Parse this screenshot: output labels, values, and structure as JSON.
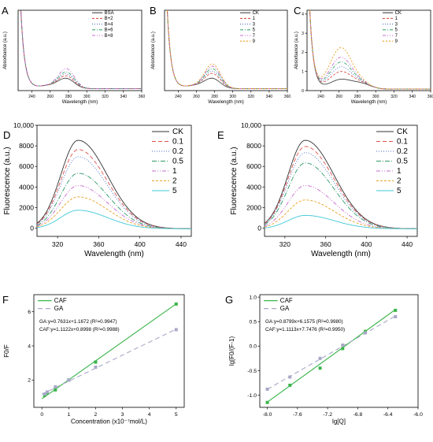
{
  "chart_data": [
    {
      "panel": "A",
      "type": "line",
      "xlabel": "Wavelength (nm)",
      "ylabel": "Absorbance (a.u.)",
      "xlim": [
        225,
        360
      ],
      "ylim": [
        0,
        4.2
      ],
      "xticks": [
        240,
        260,
        280,
        300,
        320,
        340,
        360
      ],
      "yticks": [],
      "legend": "top-right",
      "grid": false,
      "series": [
        {
          "name": "BSA",
          "color": "#444444",
          "dash": "",
          "peak": 0.45
        },
        {
          "name": "B+2",
          "color": "#e0504a",
          "dash": "3,2",
          "peak": 0.58
        },
        {
          "name": "B+4",
          "color": "#4a72c4",
          "dash": "1,2",
          "peak": 0.68
        },
        {
          "name": "B+6",
          "color": "#3aa870",
          "dash": "4,2,1,2",
          "peak": 0.78
        },
        {
          "name": "B+8",
          "color": "#c86ad0",
          "dash": "4,2,1,2,1,2",
          "peak": 0.95
        }
      ]
    },
    {
      "panel": "B",
      "type": "line",
      "xlabel": "Wavelength (nm)",
      "ylabel": "Absorbance (a.u.)",
      "xlim": [
        225,
        360
      ],
      "ylim": [
        0,
        4.2
      ],
      "xticks": [
        240,
        260,
        280,
        300,
        320,
        340,
        360
      ],
      "yticks": [],
      "legend": "top-right",
      "grid": false,
      "series": [
        {
          "name": "CK",
          "color": "#444444",
          "dash": "",
          "peak": 0.45
        },
        {
          "name": "1",
          "color": "#e0504a",
          "dash": "3,2",
          "peak": 0.7
        },
        {
          "name": "3",
          "color": "#4a72c4",
          "dash": "1,2",
          "peak": 0.82
        },
        {
          "name": "5",
          "color": "#3aa870",
          "dash": "4,2,1,2",
          "peak": 0.95
        },
        {
          "name": "7",
          "color": "#c86ad0",
          "dash": "4,2,1,2,1,2",
          "peak": 1.08
        },
        {
          "name": "9",
          "color": "#e8a020",
          "dash": "2,2",
          "peak": 1.2
        }
      ]
    },
    {
      "panel": "C",
      "type": "line",
      "xlabel": "Wavelength (nm)",
      "ylabel": "Absorbance (a.u.)",
      "xlim": [
        225,
        360
      ],
      "ylim": [
        0,
        4.2
      ],
      "xticks": [
        240,
        260,
        280,
        300,
        320,
        340,
        360
      ],
      "yticks": [
        0,
        1,
        2,
        3,
        4
      ],
      "legend": "top-right",
      "grid": false,
      "series": [
        {
          "name": "CK",
          "color": "#444444",
          "dash": "",
          "peak": 0.5
        },
        {
          "name": "1",
          "color": "#e0504a",
          "dash": "3,2",
          "peak": 0.9
        },
        {
          "name": "3",
          "color": "#4a72c4",
          "dash": "1,2",
          "peak": 1.15
        },
        {
          "name": "5",
          "color": "#3aa870",
          "dash": "4,2,1,2",
          "peak": 1.4
        },
        {
          "name": "7",
          "color": "#c86ad0",
          "dash": "4,2,1,2,1,2",
          "peak": 1.65
        },
        {
          "name": "9",
          "color": "#e8a020",
          "dash": "2,2",
          "peak": 2.15
        }
      ]
    },
    {
      "panel": "D",
      "type": "line",
      "xlabel": "Wavelength (nm)",
      "ylabel": "Fluorescence (a.u.)",
      "xlim": [
        300,
        450
      ],
      "ylim": [
        -800,
        10000
      ],
      "xticks": [
        320,
        360,
        400,
        440
      ],
      "yticks": [
        0,
        2000,
        4000,
        6000,
        8000,
        10000
      ],
      "ytick_labels": [
        "0",
        "2000",
        "4000",
        "6000",
        "8000",
        "10,000"
      ],
      "legend": "top-right",
      "grid": false,
      "series": [
        {
          "name": "CK",
          "color": "#333333",
          "dash": "",
          "peak": 8600
        },
        {
          "name": "0.1",
          "color": "#e0504a",
          "dash": "5,3",
          "peak": 7700
        },
        {
          "name": "0.2",
          "color": "#4a72c4",
          "dash": "1,2",
          "peak": 7000
        },
        {
          "name": "0.5",
          "color": "#2e9a6a",
          "dash": "6,2,1,2",
          "peak": 5400
        },
        {
          "name": "1",
          "color": "#c86ad0",
          "dash": "5,2,1,2,1,2",
          "peak": 4200
        },
        {
          "name": "2",
          "color": "#e8a020",
          "dash": "3,2",
          "peak": 3100
        },
        {
          "name": "5",
          "color": "#3fc8d8",
          "dash": "",
          "peak": 1800
        }
      ]
    },
    {
      "panel": "E",
      "type": "line",
      "xlabel": "Wavelength (nm)",
      "ylabel": "Fluorescence (a.u.)",
      "xlim": [
        300,
        450
      ],
      "ylim": [
        -800,
        10000
      ],
      "xticks": [
        320,
        360,
        400,
        440
      ],
      "yticks": [
        0,
        2000,
        4000,
        6000,
        8000,
        10000
      ],
      "ytick_labels": [
        "0",
        "2000",
        "4000",
        "6000",
        "8000",
        "10,000"
      ],
      "legend": "top-right",
      "grid": false,
      "series": [
        {
          "name": "CK",
          "color": "#333333",
          "dash": "",
          "peak": 8600
        },
        {
          "name": "0.1",
          "color": "#e0504a",
          "dash": "5,3",
          "peak": 8000
        },
        {
          "name": "0.2",
          "color": "#4a72c4",
          "dash": "1,2",
          "peak": 7400
        },
        {
          "name": "0.5",
          "color": "#2e9a6a",
          "dash": "6,2,1,2",
          "peak": 6400
        },
        {
          "name": "1",
          "color": "#c86ad0",
          "dash": "5,2,1,2,1,2",
          "peak": 4200
        },
        {
          "name": "2",
          "color": "#e8a020",
          "dash": "3,2",
          "peak": 2800
        },
        {
          "name": "5",
          "color": "#3fc8d8",
          "dash": "",
          "peak": 1300
        }
      ]
    },
    {
      "panel": "F",
      "type": "scatter",
      "xlabel": "Concentration (x10⁻⁷mol/L)",
      "ylabel": "F0/F",
      "xlim": [
        -0.3,
        5.3
      ],
      "ylim": [
        0.4,
        7.0
      ],
      "xticks": [
        0,
        1,
        2,
        3,
        4,
        5
      ],
      "yticks": [
        2,
        4,
        6
      ],
      "legend": "top-left",
      "grid": false,
      "equations": [
        "GA:y=0.7631x+1.1672 (R²=0.9947)",
        "CAF:y=1.1122x+0.8998 (R²=0.9988)"
      ],
      "series": [
        {
          "name": "CAF",
          "color": "#3ab54a",
          "dash": "",
          "slope": 1.1122,
          "intercept": 0.8998,
          "x": [
            0.1,
            0.2,
            0.5,
            1,
            2,
            5
          ],
          "y": [
            1.1,
            1.25,
            1.42,
            2.0,
            3.05,
            6.45
          ]
        },
        {
          "name": "GA",
          "color": "#a8a8c8",
          "dash": "6,4",
          "slope": 0.7631,
          "intercept": 1.1672,
          "x": [
            0.1,
            0.2,
            0.5,
            1,
            2,
            5
          ],
          "y": [
            1.18,
            1.3,
            1.6,
            2.0,
            2.75,
            4.95
          ]
        }
      ]
    },
    {
      "panel": "G",
      "type": "scatter",
      "xlabel": "lg[Q]",
      "ylabel": "lg[F0/(F-1)",
      "xlim": [
        -8.1,
        -6.0
      ],
      "ylim": [
        -1.25,
        1.05
      ],
      "xticks": [
        -8.0,
        -7.6,
        -7.2,
        -6.8,
        -6.4,
        -6.0
      ],
      "yticks": [
        -1.0,
        -0.5,
        0.0,
        0.5,
        1.0
      ],
      "xtick_labels": [
        "-8.0",
        "-7.6",
        "-7.2",
        "-6.8",
        "-6.4",
        "-6.0"
      ],
      "ytick_labels": [
        "-1.0",
        "-0.5",
        "0.0",
        "0.5",
        "1.0"
      ],
      "legend": "top-left",
      "grid": false,
      "equations": [
        "GA:y=0.8799x+6.1575 (R²=0.9980)",
        "CAF:y=1.1113x+7.7476 (R²=0.9950)"
      ],
      "series": [
        {
          "name": "CAF",
          "color": "#3ab54a",
          "dash": "",
          "slope": 1.1113,
          "intercept": 7.7476,
          "x": [
            -8.0,
            -7.7,
            -7.3,
            -7.0,
            -6.7,
            -6.3
          ],
          "y": [
            -1.15,
            -0.8,
            -0.45,
            -0.05,
            0.3,
            0.73
          ]
        },
        {
          "name": "GA",
          "color": "#a8a8c8",
          "dash": "6,4",
          "slope": 0.8799,
          "intercept": 6.1575,
          "x": [
            -8.0,
            -7.7,
            -7.3,
            -7.0,
            -6.7,
            -6.3
          ],
          "y": [
            -0.88,
            -0.63,
            -0.25,
            0.02,
            0.27,
            0.6
          ]
        }
      ]
    }
  ]
}
